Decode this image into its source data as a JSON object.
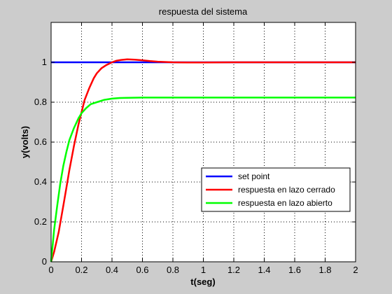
{
  "chart_data": {
    "type": "line",
    "title": "respuesta del sistema",
    "xlabel": "t(seg)",
    "ylabel": "y(volts)",
    "xlim": [
      0,
      2
    ],
    "ylim": [
      0,
      1.2
    ],
    "xticks": [
      0,
      0.2,
      0.4,
      0.6,
      0.8,
      1,
      1.2,
      1.4,
      1.6,
      1.8,
      2
    ],
    "xtick_labels": [
      "0",
      "0.2",
      "0.4",
      "0.6",
      "0.8",
      "1",
      "1.2",
      "1.4",
      "1.6",
      "1.8",
      "2"
    ],
    "yticks": [
      0,
      0.2,
      0.4,
      0.6,
      0.8,
      1
    ],
    "ytick_labels": [
      "0",
      "0.2",
      "0.4",
      "0.6",
      "0.8",
      "1"
    ],
    "grid": true,
    "legend_position": "lower-right",
    "series": [
      {
        "name": "set point",
        "color": "#0000ff",
        "x": [
          0,
          2
        ],
        "y": [
          1,
          1
        ]
      },
      {
        "name": "respuesta en lazo cerrado",
        "color": "#ff0000",
        "x": [
          0,
          0.02,
          0.05,
          0.08,
          0.1,
          0.12,
          0.15,
          0.18,
          0.2,
          0.22,
          0.25,
          0.28,
          0.3,
          0.33,
          0.36,
          0.4,
          0.43,
          0.46,
          0.5,
          0.55,
          0.6,
          0.65,
          0.7,
          0.8,
          0.9,
          1.0,
          1.2,
          1.4,
          1.6,
          1.8,
          2.0
        ],
        "y": [
          0,
          0.05,
          0.15,
          0.28,
          0.37,
          0.46,
          0.58,
          0.69,
          0.75,
          0.81,
          0.87,
          0.92,
          0.945,
          0.97,
          0.985,
          1.0,
          1.008,
          1.012,
          1.015,
          1.013,
          1.01,
          1.006,
          1.003,
          1.0,
          0.999,
          0.999,
          1.0,
          1.0,
          1.0,
          1.0,
          1.0
        ]
      },
      {
        "name": "respuesta en lazo abierto",
        "color": "#00ff00",
        "x": [
          0,
          0.02,
          0.04,
          0.06,
          0.08,
          0.1,
          0.12,
          0.15,
          0.18,
          0.2,
          0.23,
          0.26,
          0.3,
          0.35,
          0.4,
          0.45,
          0.5,
          0.6,
          0.7,
          0.8,
          1.0,
          1.2,
          1.5,
          2.0
        ],
        "y": [
          0,
          0.16,
          0.28,
          0.39,
          0.48,
          0.55,
          0.61,
          0.67,
          0.72,
          0.745,
          0.77,
          0.79,
          0.8,
          0.812,
          0.818,
          0.821,
          0.822,
          0.823,
          0.823,
          0.823,
          0.823,
          0.823,
          0.823,
          0.823
        ]
      }
    ]
  }
}
